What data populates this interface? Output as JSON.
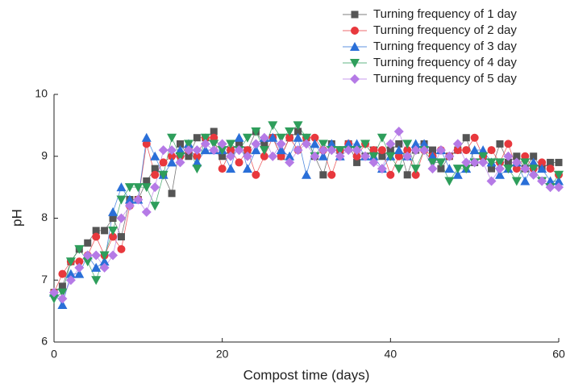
{
  "chart_data": {
    "type": "line",
    "xlabel": "Compost time (days)",
    "ylabel": "pH",
    "x": [
      0,
      1,
      2,
      3,
      4,
      5,
      6,
      7,
      8,
      9,
      10,
      11,
      12,
      13,
      14,
      15,
      16,
      17,
      18,
      19,
      20,
      21,
      22,
      23,
      24,
      25,
      26,
      27,
      28,
      29,
      30,
      31,
      32,
      33,
      34,
      35,
      36,
      37,
      38,
      39,
      40,
      41,
      42,
      43,
      44,
      45,
      46,
      47,
      48,
      49,
      50,
      51,
      52,
      53,
      54,
      55,
      56,
      57,
      58,
      59,
      60
    ],
    "xlim": [
      0,
      60
    ],
    "xticks": [
      0,
      20,
      40,
      60
    ],
    "ylim": [
      6,
      10
    ],
    "yticks": [
      6,
      7,
      8,
      9,
      10
    ],
    "legend": "upper right",
    "series": [
      {
        "name": "Turning frequency of 1 day",
        "color": "#555555",
        "marker": "square",
        "values": [
          6.8,
          6.9,
          7.3,
          7.5,
          7.6,
          7.8,
          7.8,
          8.0,
          7.7,
          8.3,
          8.3,
          8.6,
          8.8,
          8.7,
          8.4,
          9.2,
          9.0,
          9.3,
          9.3,
          9.4,
          9.0,
          9.1,
          9.2,
          9.1,
          9.4,
          9.2,
          9.3,
          9.0,
          9.3,
          9.4,
          9.3,
          9.0,
          8.7,
          9.2,
          9.1,
          9.2,
          8.9,
          9.0,
          9.1,
          9.0,
          9.1,
          9.2,
          8.7,
          9.1,
          9.2,
          9.1,
          8.8,
          9.0,
          9.1,
          9.3,
          8.9,
          9.0,
          8.8,
          9.2,
          8.9,
          9.0,
          8.8,
          9.0,
          8.8,
          8.9,
          8.9
        ]
      },
      {
        "name": "Turning frequency of 2 day",
        "color": "#e8383d",
        "marker": "circle",
        "values": [
          6.8,
          7.1,
          7.3,
          7.3,
          7.4,
          7.7,
          7.4,
          7.7,
          7.5,
          8.2,
          8.3,
          9.2,
          8.7,
          8.9,
          9.0,
          9.0,
          9.1,
          9.0,
          9.3,
          9.3,
          8.8,
          9.1,
          8.9,
          9.1,
          8.7,
          9.0,
          9.3,
          9.0,
          9.3,
          9.1,
          9.3,
          9.3,
          9.1,
          8.7,
          9.1,
          9.2,
          9.0,
          9.2,
          9.1,
          9.1,
          8.7,
          9.0,
          9.1,
          8.7,
          9.1,
          9.0,
          9.1,
          9.0,
          9.1,
          9.1,
          9.3,
          9.0,
          9.1,
          8.9,
          9.2,
          8.8,
          9.0,
          8.8,
          8.9,
          8.8,
          8.7
        ]
      },
      {
        "name": "Turning frequency of 3 day",
        "color": "#2a6fd8",
        "marker": "triangle-up",
        "values": [
          6.8,
          6.6,
          7.1,
          7.1,
          7.4,
          7.2,
          7.3,
          8.1,
          8.5,
          8.3,
          8.3,
          9.3,
          9.0,
          8.7,
          8.9,
          9.1,
          9.2,
          8.9,
          9.1,
          9.1,
          9.1,
          8.8,
          9.3,
          8.8,
          9.1,
          9.3,
          9.3,
          9.1,
          9.0,
          9.3,
          8.7,
          9.2,
          9.0,
          9.2,
          9.0,
          9.2,
          9.2,
          9.0,
          9.0,
          8.8,
          9.0,
          9.1,
          9.0,
          9.2,
          9.2,
          9.0,
          9.1,
          8.8,
          8.7,
          8.8,
          9.1,
          9.1,
          8.9,
          8.7,
          8.8,
          8.9,
          8.6,
          8.9,
          8.8,
          8.6,
          8.6
        ]
      },
      {
        "name": "Turning frequency of 4 day",
        "color": "#2e9e5b",
        "marker": "triangle-down",
        "values": [
          6.7,
          6.8,
          7.3,
          7.5,
          7.3,
          7.0,
          7.4,
          7.8,
          8.3,
          8.5,
          8.5,
          8.5,
          8.2,
          8.7,
          9.3,
          9.0,
          9.2,
          8.8,
          9.3,
          9.2,
          9.1,
          9.2,
          9.1,
          9.3,
          9.4,
          9.1,
          9.5,
          9.3,
          9.4,
          9.5,
          9.3,
          9.0,
          9.2,
          9.1,
          9.1,
          9.1,
          9.1,
          9.2,
          9.0,
          9.3,
          9.0,
          8.8,
          9.2,
          8.8,
          9.1,
          8.9,
          8.9,
          8.6,
          8.8,
          8.8,
          8.9,
          9.0,
          8.9,
          8.9,
          8.8,
          8.6,
          8.9,
          8.8,
          8.6,
          8.5,
          8.7
        ]
      },
      {
        "name": "Turning frequency of 5 day",
        "color": "#b57ae6",
        "marker": "diamond",
        "values": [
          6.8,
          6.7,
          7.0,
          7.2,
          7.4,
          7.4,
          7.2,
          7.4,
          8.0,
          8.2,
          8.3,
          8.1,
          8.5,
          9.1,
          9.1,
          8.9,
          9.1,
          9.1,
          9.2,
          9.1,
          9.2,
          9.0,
          9.1,
          9.0,
          9.2,
          9.3,
          9.0,
          9.2,
          8.9,
          9.1,
          9.2,
          9.0,
          9.1,
          9.1,
          9.0,
          9.1,
          9.1,
          9.0,
          8.9,
          8.8,
          9.2,
          9.4,
          9.0,
          9.1,
          9.1,
          8.8,
          9.1,
          9.0,
          9.2,
          8.9,
          8.9,
          8.9,
          8.6,
          8.8,
          9.0,
          8.9,
          8.8,
          8.7,
          8.6,
          8.5,
          8.5
        ]
      }
    ]
  }
}
